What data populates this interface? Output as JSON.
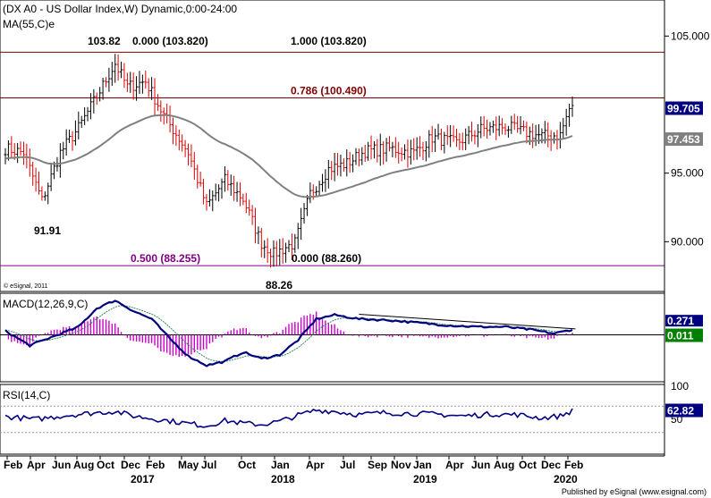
{
  "chart_data": [
    {
      "type": "candlestick",
      "title": "(DX A0 - US Dollar Index,W) Dynamic,0:00-24:00",
      "subtitle": "MA(55,C)e",
      "ylim": [
        86.5,
        107.5
      ],
      "yticks": [
        "105.000",
        "95.000",
        "90.000"
      ],
      "last_price": "99.705",
      "ma_last": "97.453",
      "fib_levels": [
        {
          "label": "1.000 (103.820)",
          "value": 103.82
        },
        {
          "label": "0.786 (100.490)",
          "value": 100.49
        },
        {
          "label": "0.500 (88.255)",
          "value": 88.255
        }
      ],
      "fib_start_label": "0.000 (103.820)",
      "fib_low_label": "0.000 (88.260)",
      "annotations": [
        {
          "text": "103.82",
          "value": 103.82
        },
        {
          "text": "91.91",
          "value": 91.91
        },
        {
          "text": "88.26",
          "value": 88.26
        }
      ],
      "trend_anchors": [
        {
          "week": 0,
          "value": 96.8
        },
        {
          "week": 6,
          "value": 96.5
        },
        {
          "week": 12,
          "value": 93.0
        },
        {
          "week": 18,
          "value": 96.5
        },
        {
          "week": 24,
          "value": 98.3
        },
        {
          "week": 30,
          "value": 100.6
        },
        {
          "week": 36,
          "value": 103.0
        },
        {
          "week": 40,
          "value": 101.3
        },
        {
          "week": 46,
          "value": 101.7
        },
        {
          "week": 52,
          "value": 99.2
        },
        {
          "week": 60,
          "value": 96.5
        },
        {
          "week": 66,
          "value": 92.6
        },
        {
          "week": 72,
          "value": 94.5
        },
        {
          "week": 78,
          "value": 93.1
        },
        {
          "week": 84,
          "value": 89.9
        },
        {
          "week": 88,
          "value": 89.1
        },
        {
          "week": 92,
          "value": 89.6
        },
        {
          "week": 95,
          "value": 89.9
        },
        {
          "week": 100,
          "value": 93.5
        },
        {
          "week": 106,
          "value": 95.3
        },
        {
          "week": 112,
          "value": 95.7
        },
        {
          "week": 118,
          "value": 96.6
        },
        {
          "week": 126,
          "value": 96.8
        },
        {
          "week": 134,
          "value": 96.5
        },
        {
          "week": 140,
          "value": 97.6
        },
        {
          "week": 148,
          "value": 97.2
        },
        {
          "week": 156,
          "value": 98.2
        },
        {
          "week": 164,
          "value": 98.4
        },
        {
          "week": 170,
          "value": 98.0
        },
        {
          "week": 176,
          "value": 97.7
        },
        {
          "week": 182,
          "value": 97.8
        },
        {
          "week": 185,
          "value": 99.7
        }
      ]
    },
    {
      "type": "line",
      "title": "MACD(12,26,9,C)",
      "ylim": [
        -3.4,
        3.0
      ],
      "last_value": "0.011",
      "top_value": "0.271",
      "series_anchors": [
        {
          "week": 0,
          "value": 0.3
        },
        {
          "week": 8,
          "value": -0.8
        },
        {
          "week": 16,
          "value": -0.1
        },
        {
          "week": 24,
          "value": 0.6
        },
        {
          "week": 30,
          "value": 2.0
        },
        {
          "week": 36,
          "value": 2.6
        },
        {
          "week": 42,
          "value": 1.8
        },
        {
          "week": 48,
          "value": 1.2
        },
        {
          "week": 54,
          "value": -0.3
        },
        {
          "week": 60,
          "value": -1.6
        },
        {
          "week": 66,
          "value": -2.3
        },
        {
          "week": 72,
          "value": -2.0
        },
        {
          "week": 78,
          "value": -1.3
        },
        {
          "week": 84,
          "value": -1.8
        },
        {
          "week": 90,
          "value": -1.5
        },
        {
          "week": 96,
          "value": -0.4
        },
        {
          "week": 102,
          "value": 1.2
        },
        {
          "week": 108,
          "value": 1.5
        },
        {
          "week": 116,
          "value": 1.2
        },
        {
          "week": 126,
          "value": 1.1
        },
        {
          "week": 136,
          "value": 0.9
        },
        {
          "week": 146,
          "value": 0.7
        },
        {
          "week": 156,
          "value": 0.6
        },
        {
          "week": 164,
          "value": 0.6
        },
        {
          "week": 172,
          "value": 0.4
        },
        {
          "week": 180,
          "value": 0.1
        },
        {
          "week": 186,
          "value": 0.4
        }
      ]
    },
    {
      "type": "line",
      "title": "RSI(14,C)",
      "ylim": [
        0,
        100
      ],
      "yticks": [
        "100",
        "50"
      ],
      "last_value": "62.82",
      "series_anchors": [
        {
          "week": 0,
          "value": 54
        },
        {
          "week": 10,
          "value": 50
        },
        {
          "week": 20,
          "value": 56
        },
        {
          "week": 30,
          "value": 60
        },
        {
          "week": 36,
          "value": 62
        },
        {
          "week": 42,
          "value": 55
        },
        {
          "week": 50,
          "value": 50
        },
        {
          "week": 58,
          "value": 45
        },
        {
          "week": 66,
          "value": 40
        },
        {
          "week": 72,
          "value": 48
        },
        {
          "week": 78,
          "value": 44
        },
        {
          "week": 84,
          "value": 42
        },
        {
          "week": 90,
          "value": 47
        },
        {
          "week": 96,
          "value": 56
        },
        {
          "week": 102,
          "value": 64
        },
        {
          "week": 108,
          "value": 62
        },
        {
          "week": 116,
          "value": 57
        },
        {
          "week": 124,
          "value": 60
        },
        {
          "week": 132,
          "value": 59
        },
        {
          "week": 140,
          "value": 58
        },
        {
          "week": 150,
          "value": 55
        },
        {
          "week": 160,
          "value": 58
        },
        {
          "week": 168,
          "value": 57
        },
        {
          "week": 176,
          "value": 52
        },
        {
          "week": 182,
          "value": 55
        },
        {
          "week": 186,
          "value": 63
        }
      ]
    }
  ],
  "x_labels": [
    "Feb",
    "Apr",
    "Jun",
    "Aug",
    "Oct",
    "Dec",
    "Feb",
    "May",
    "Jul",
    "Oct",
    "Jan",
    "Apr",
    "Jul",
    "Sep",
    "Nov",
    "Jan",
    "Apr",
    "Jun",
    "Aug",
    "Oct",
    "Dec",
    "Feb"
  ],
  "year_labels": [
    "2017",
    "2018",
    "2019",
    "2020"
  ],
  "copyright": "© eSignal, 2011",
  "footer": "Published by eSignal (www.esignal.com)",
  "colors": {
    "up": "#000000",
    "down": "#e00000",
    "ma": "#808080",
    "fib": "#800000",
    "fib_low": "#800080",
    "indicator": "#000080",
    "signal": "#2e8b57",
    "hist": "#cc00cc",
    "last_tag": "#000080",
    "ma_tag": "#808080",
    "macd_tag": "#008000"
  }
}
